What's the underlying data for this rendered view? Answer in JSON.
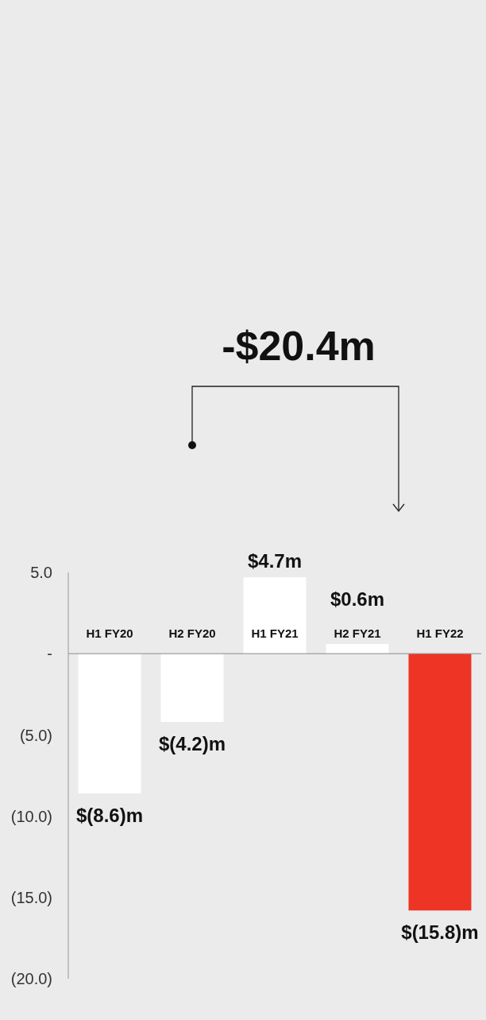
{
  "chart_data": {
    "type": "bar",
    "categories": [
      "H1 FY20",
      "H2 FY20",
      "H1 FY21",
      "H2 FY21",
      "H1 FY22"
    ],
    "values": [
      -8.6,
      -4.2,
      4.7,
      0.6,
      -15.8
    ],
    "colors": [
      "#ffffff",
      "#ffffff",
      "#ffffff",
      "#ffffff",
      "#ee3425"
    ],
    "value_labels": [
      "$(8.6)m",
      "$(4.2)m",
      "$4.7m",
      "$0.6m",
      "$(15.8)m"
    ],
    "ylim": [
      -20,
      5
    ],
    "yticks": [
      {
        "value": 5,
        "label": "5.0"
      },
      {
        "value": 0,
        "label": "-"
      },
      {
        "value": -5,
        "label": "(5.0)"
      },
      {
        "value": -10,
        "label": "(10.0)"
      },
      {
        "value": -15,
        "label": "(15.0)"
      },
      {
        "value": -20,
        "label": "(20.0)"
      }
    ],
    "annotations": [
      "-$20.4m"
    ],
    "grid": false,
    "legend": false
  }
}
